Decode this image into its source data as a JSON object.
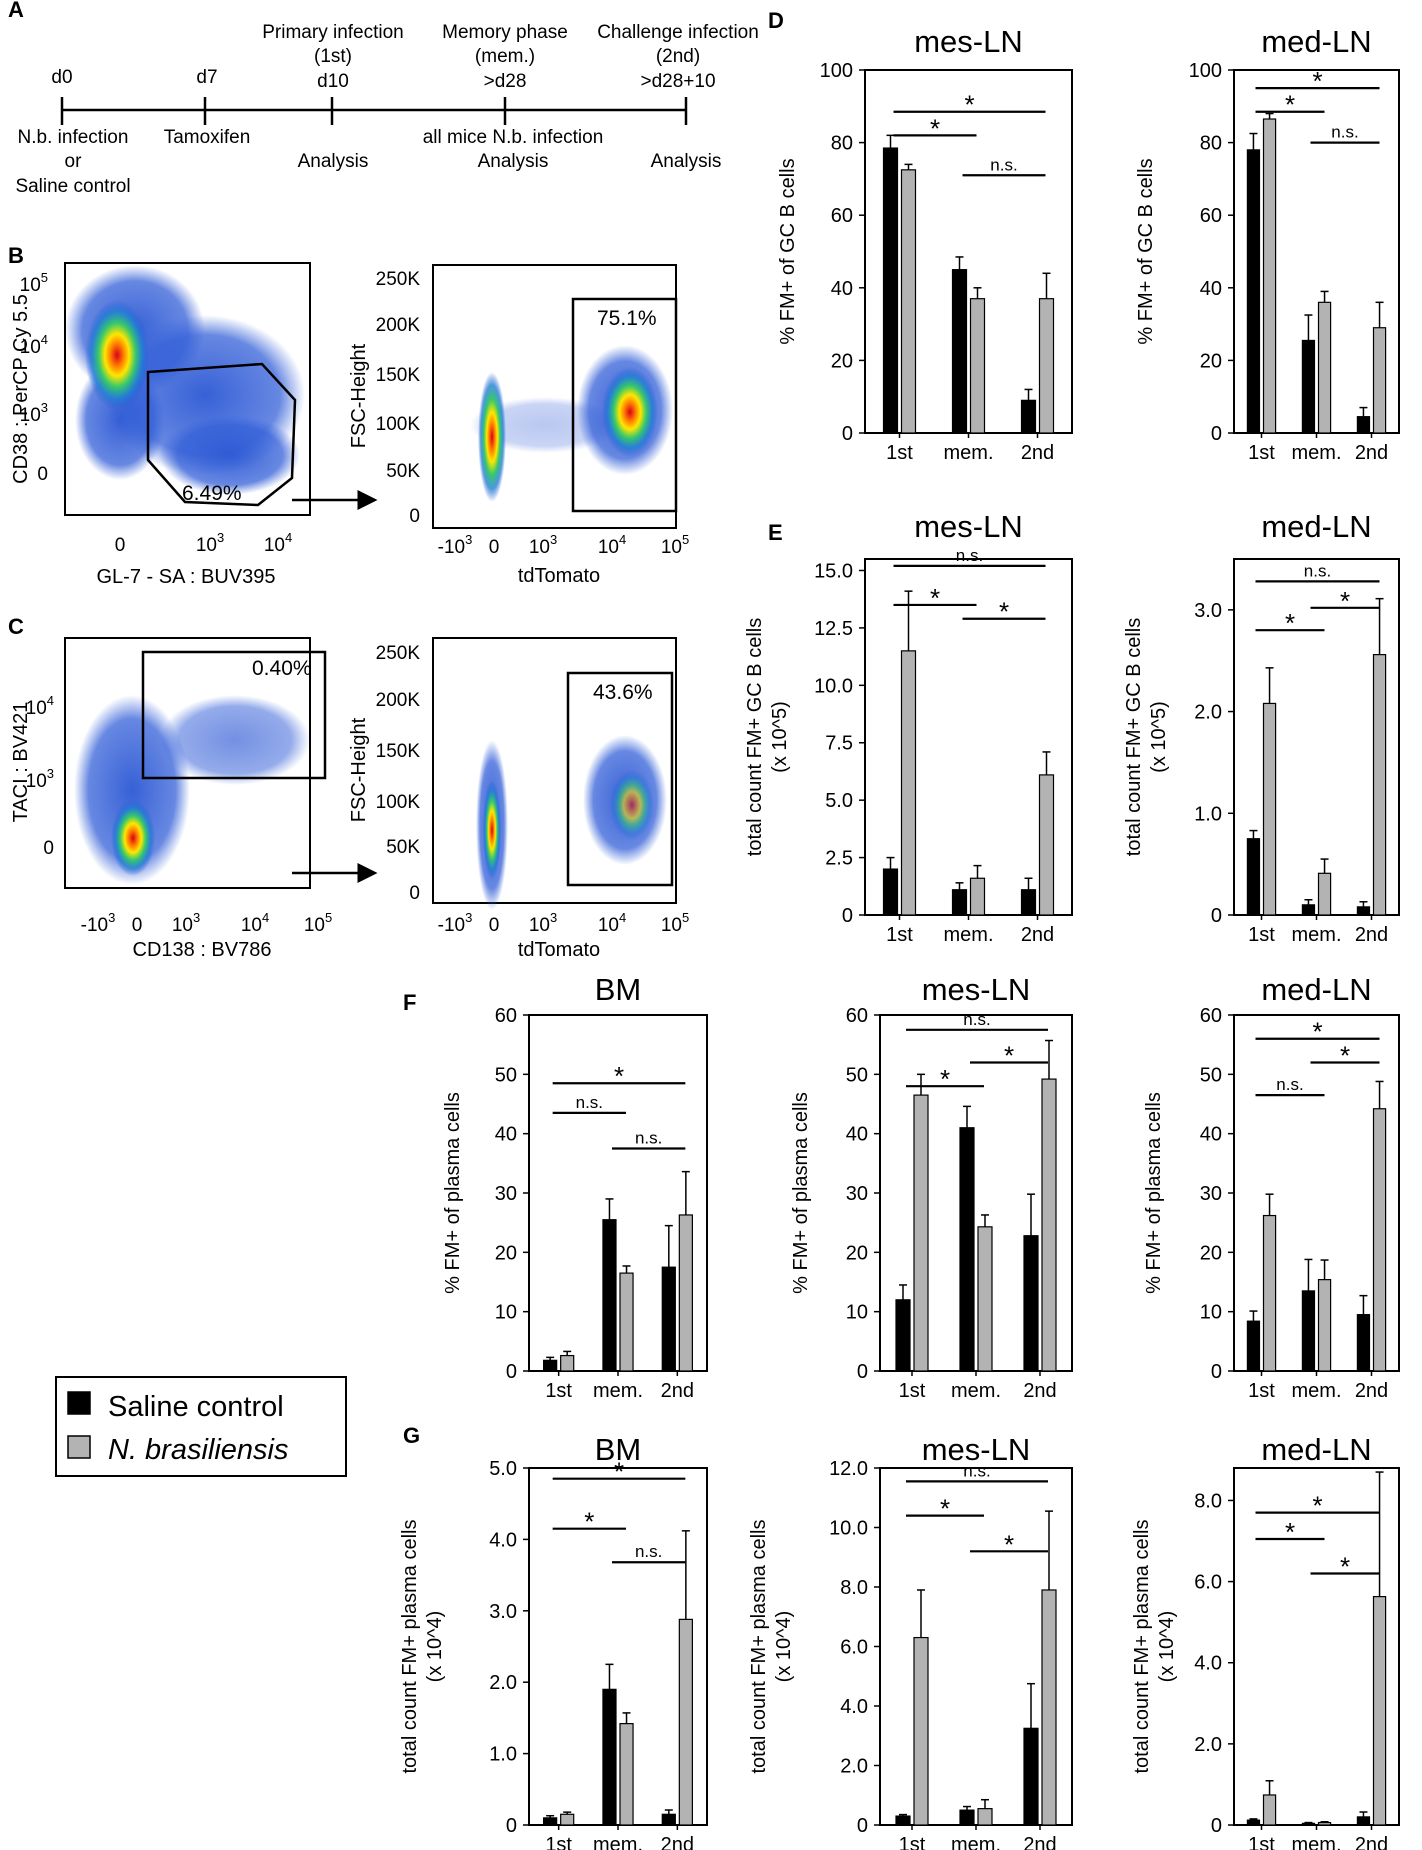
{
  "panel_letters": [
    "A",
    "B",
    "C",
    "D",
    "E",
    "F",
    "G"
  ],
  "timeline": {
    "points": [
      {
        "day": "d0",
        "above": [],
        "below": [
          "N.b. infection",
          "or",
          "Saline control"
        ]
      },
      {
        "day": "d7",
        "above": [],
        "below": [
          "Tamoxifen"
        ]
      },
      {
        "day": "d10",
        "above": [
          "Primary infection",
          "(1st)"
        ],
        "below": [
          "Analysis"
        ]
      },
      {
        "day": ">d28",
        "above": [
          "Memory phase",
          "(mem.)"
        ],
        "below": [
          "all mice N.b. infection",
          "Analysis"
        ]
      },
      {
        "day": ">d28+10",
        "above": [
          "Challenge infection",
          "(2nd)"
        ],
        "below": [
          "Analysis"
        ]
      }
    ]
  },
  "flow": {
    "B_left": {
      "xlabel": "GL-7 - SA : BUV395",
      "ylabel": "CD38 : PerCP Cy 5.5",
      "gate": "6.49%",
      "xticks": [
        "0",
        "10^3",
        "10^4"
      ],
      "yticks": [
        "10^5",
        "10^4",
        "10^3",
        "0"
      ]
    },
    "B_right": {
      "xlabel": "tdTomato",
      "ylabel": "FSC-Height",
      "gate": "75.1%",
      "xticks": [
        "-10^3",
        "0",
        "10^3",
        "10^4",
        "10^5"
      ],
      "yticks": [
        "250K",
        "200K",
        "150K",
        "100K",
        "50K",
        "0"
      ]
    },
    "C_left": {
      "xlabel": "CD138 : BV786",
      "ylabel": "TACI : BV421",
      "gate": "0.40%",
      "xticks": [
        "-10^3",
        "0",
        "10^3",
        "10^4",
        "10^5"
      ],
      "yticks": [
        "10^4",
        "10^3",
        "0"
      ]
    },
    "C_right": {
      "xlabel": "tdTomato",
      "ylabel": "FSC-Height",
      "gate": "43.6%",
      "xticks": [
        "-10^3",
        "0",
        "10^3",
        "10^4",
        "10^5"
      ],
      "yticks": [
        "250K",
        "200K",
        "150K",
        "100K",
        "50K",
        "0"
      ]
    }
  },
  "legend": {
    "items": [
      {
        "label": "Saline control",
        "color": "#000000"
      },
      {
        "label": "N. brasiliensis",
        "color": "#b3b3b3"
      }
    ]
  },
  "colors": {
    "saline": "#000000",
    "nb": "#b3b3b3"
  },
  "chart_data": [
    {
      "type": "bar",
      "panel": "D",
      "title": "mes-LN",
      "ylabel": "% FM+  of GC B cells",
      "categories": [
        "1st",
        "mem.",
        "2nd"
      ],
      "ylim": [
        0,
        100
      ],
      "yticks": [
        0,
        20,
        40,
        60,
        80,
        100
      ],
      "ticklabels": [
        "0",
        "20",
        "40",
        "60",
        "80",
        "100"
      ],
      "series": [
        {
          "name": "Saline control",
          "values": [
            78.5,
            45,
            9
          ],
          "errors": [
            3.5,
            3.5,
            3
          ]
        },
        {
          "name": "N. brasiliensis",
          "values": [
            72.5,
            37,
            37
          ],
          "errors": [
            1.5,
            3,
            7
          ]
        }
      ],
      "sig": [
        {
          "from": 0,
          "to": 2,
          "label": "*",
          "y": 88.5
        },
        {
          "from": 0,
          "to": 1,
          "label": "*",
          "y": 82
        },
        {
          "from": 1,
          "to": 2,
          "label": "n.s.",
          "y": 71
        }
      ]
    },
    {
      "type": "bar",
      "panel": "D",
      "title": "med-LN",
      "ylabel": "% FM+  of GC B cells",
      "categories": [
        "1st",
        "mem.",
        "2nd"
      ],
      "ylim": [
        0,
        100
      ],
      "yticks": [
        0,
        20,
        40,
        60,
        80,
        100
      ],
      "ticklabels": [
        "0",
        "20",
        "40",
        "60",
        "80",
        "100"
      ],
      "series": [
        {
          "name": "Saline control",
          "values": [
            78,
            25.5,
            4.5
          ],
          "errors": [
            4.5,
            7,
            2.5
          ]
        },
        {
          "name": "N. brasiliensis",
          "values": [
            86.5,
            36,
            29
          ],
          "errors": [
            1.5,
            3,
            7
          ]
        }
      ],
      "sig": [
        {
          "from": 0,
          "to": 2,
          "label": "*",
          "y": 95
        },
        {
          "from": 0,
          "to": 1,
          "label": "*",
          "y": 88.5
        },
        {
          "from": 1,
          "to": 2,
          "label": "n.s.",
          "y": 80
        }
      ]
    },
    {
      "type": "bar",
      "panel": "E",
      "title": "mes-LN",
      "ylabel": "total count FM+ GC B cells\n(x 10^5)",
      "categories": [
        "1st",
        "mem.",
        "2nd"
      ],
      "ylim": [
        0,
        15.5
      ],
      "yticks": [
        0,
        2.5,
        5,
        7.5,
        10,
        12.5,
        15
      ],
      "ticklabels": [
        "0",
        "2.5",
        "5.0",
        "7.5",
        "10.0",
        "12.5",
        "15.0"
      ],
      "series": [
        {
          "name": "Saline control",
          "values": [
            2,
            1.1,
            1.1
          ],
          "errors": [
            0.5,
            0.3,
            0.5
          ]
        },
        {
          "name": "N. brasiliensis",
          "values": [
            11.5,
            1.6,
            6.1
          ],
          "errors": [
            2.6,
            0.55,
            1
          ]
        }
      ],
      "sig": [
        {
          "from": 0,
          "to": 2,
          "label": "n.s.",
          "y": 15.2
        },
        {
          "from": 0,
          "to": 1,
          "label": "*",
          "y": 13.5
        },
        {
          "from": 1,
          "to": 2,
          "label": "*",
          "y": 12.9
        }
      ]
    },
    {
      "type": "bar",
      "panel": "E",
      "title": "med-LN",
      "ylabel": "total count FM+ GC B cells\n(x 10^5)",
      "categories": [
        "1st",
        "mem.",
        "2nd"
      ],
      "ylim": [
        0,
        3.5
      ],
      "yticks": [
        0,
        1,
        2,
        3
      ],
      "ticklabels": [
        "0",
        "1.0",
        "2.0",
        "3.0"
      ],
      "series": [
        {
          "name": "Saline control",
          "values": [
            0.75,
            0.1,
            0.08
          ],
          "errors": [
            0.08,
            0.05,
            0.05
          ]
        },
        {
          "name": "N. brasiliensis",
          "values": [
            2.08,
            0.41,
            2.56
          ],
          "errors": [
            0.35,
            0.14,
            0.55
          ]
        }
      ],
      "sig": [
        {
          "from": 0,
          "to": 2,
          "label": "n.s.",
          "y": 3.28
        },
        {
          "from": 0,
          "to": 1,
          "label": "*",
          "y": 2.8
        },
        {
          "from": 1,
          "to": 2,
          "label": "*",
          "y": 3.02
        }
      ]
    },
    {
      "type": "bar",
      "panel": "F",
      "title": "BM",
      "ylabel": "% FM+ of plasma cells",
      "categories": [
        "1st",
        "mem.",
        "2nd"
      ],
      "ylim": [
        0,
        60
      ],
      "yticks": [
        0,
        10,
        20,
        30,
        40,
        50,
        60
      ],
      "ticklabels": [
        "0",
        "10",
        "20",
        "30",
        "40",
        "50",
        "60"
      ],
      "series": [
        {
          "name": "Saline control",
          "values": [
            1.8,
            25.5,
            17.5
          ],
          "errors": [
            0.5,
            3.5,
            7
          ]
        },
        {
          "name": "N. brasiliensis",
          "values": [
            2.6,
            16.5,
            26.3
          ],
          "errors": [
            0.7,
            1.2,
            7.3
          ]
        }
      ],
      "sig": [
        {
          "from": 0,
          "to": 2,
          "label": "*",
          "y": 48.5
        },
        {
          "from": 0,
          "to": 1,
          "label": "n.s.",
          "y": 43.5
        },
        {
          "from": 1,
          "to": 2,
          "label": "n.s.",
          "y": 37.5
        }
      ]
    },
    {
      "type": "bar",
      "panel": "F",
      "title": "mes-LN",
      "ylabel": "% FM+ of plasma cells",
      "categories": [
        "1st",
        "mem.",
        "2nd"
      ],
      "ylim": [
        0,
        60
      ],
      "yticks": [
        0,
        10,
        20,
        30,
        40,
        50,
        60
      ],
      "ticklabels": [
        "0",
        "10",
        "20",
        "30",
        "40",
        "50",
        "60"
      ],
      "series": [
        {
          "name": "Saline control",
          "values": [
            12,
            41,
            22.8
          ],
          "errors": [
            2.5,
            3.6,
            7
          ]
        },
        {
          "name": "N. brasiliensis",
          "values": [
            46.5,
            24.3,
            49.2
          ],
          "errors": [
            3.5,
            2,
            6.5
          ]
        }
      ],
      "sig": [
        {
          "from": 0,
          "to": 2,
          "label": "n.s.",
          "y": 57.5
        },
        {
          "from": 0,
          "to": 1,
          "label": "*",
          "y": 48
        },
        {
          "from": 1,
          "to": 2,
          "label": "*",
          "y": 52
        }
      ]
    },
    {
      "type": "bar",
      "panel": "F",
      "title": "med-LN",
      "ylabel": "% FM+ of plasma cells",
      "categories": [
        "1st",
        "mem.",
        "2nd"
      ],
      "ylim": [
        0,
        60
      ],
      "yticks": [
        0,
        10,
        20,
        30,
        40,
        50,
        60
      ],
      "ticklabels": [
        "0",
        "10",
        "20",
        "30",
        "40",
        "50",
        "60"
      ],
      "series": [
        {
          "name": "Saline control",
          "values": [
            8.4,
            13.5,
            9.5
          ],
          "errors": [
            1.7,
            5.3,
            3.2
          ]
        },
        {
          "name": "N. brasiliensis",
          "values": [
            26.2,
            15.4,
            44.2
          ],
          "errors": [
            3.6,
            3.3,
            4.6
          ]
        }
      ],
      "sig": [
        {
          "from": 0,
          "to": 2,
          "label": "*",
          "y": 56
        },
        {
          "from": 0,
          "to": 1,
          "label": "n.s.",
          "y": 46.5
        },
        {
          "from": 1,
          "to": 2,
          "label": "*",
          "y": 52
        }
      ]
    },
    {
      "type": "bar",
      "panel": "G",
      "title": "BM",
      "ylabel": "total count FM+ plasma cells\n(x 10^4)",
      "categories": [
        "1st",
        "mem.",
        "2nd"
      ],
      "ylim": [
        0,
        5
      ],
      "yticks": [
        0,
        1,
        2,
        3,
        4,
        5
      ],
      "ticklabels": [
        "0",
        "1.0",
        "2.0",
        "3.0",
        "4.0",
        "5.0"
      ],
      "series": [
        {
          "name": "Saline control",
          "values": [
            0.1,
            1.9,
            0.15
          ],
          "errors": [
            0.03,
            0.35,
            0.06
          ]
        },
        {
          "name": "N. brasiliensis",
          "values": [
            0.15,
            1.42,
            2.88
          ],
          "errors": [
            0.03,
            0.15,
            1.24
          ]
        }
      ],
      "sig": [
        {
          "from": 0,
          "to": 2,
          "label": "*",
          "y": 4.85
        },
        {
          "from": 0,
          "to": 1,
          "label": "*",
          "y": 4.15
        },
        {
          "from": 1,
          "to": 2,
          "label": "n.s.",
          "y": 3.68
        }
      ]
    },
    {
      "type": "bar",
      "panel": "G",
      "title": "mes-LN",
      "ylabel": "total count FM+ plasma cells\n(x 10^4)",
      "categories": [
        "1st",
        "mem.",
        "2nd"
      ],
      "ylim": [
        0,
        12
      ],
      "yticks": [
        0,
        2,
        4,
        6,
        8,
        10,
        12
      ],
      "ticklabels": [
        "0",
        "2.0",
        "4.0",
        "6.0",
        "8.0",
        "10.0",
        "12.0"
      ],
      "series": [
        {
          "name": "Saline control",
          "values": [
            0.3,
            0.5,
            3.25
          ],
          "errors": [
            0.05,
            0.12,
            1.5
          ]
        },
        {
          "name": "N. brasiliensis",
          "values": [
            6.3,
            0.55,
            7.9
          ],
          "errors": [
            1.6,
            0.3,
            2.65
          ]
        }
      ],
      "sig": [
        {
          "from": 0,
          "to": 2,
          "label": "n.s.",
          "y": 11.55
        },
        {
          "from": 0,
          "to": 1,
          "label": "*",
          "y": 10.4
        },
        {
          "from": 1,
          "to": 2,
          "label": "*",
          "y": 9.2
        }
      ]
    },
    {
      "type": "bar",
      "panel": "G",
      "title": "med-LN",
      "ylabel": "total count FM+ plasma cells\n(x 10^4)",
      "categories": [
        "1st",
        "mem.",
        "2nd"
      ],
      "ylim": [
        0,
        8.8
      ],
      "yticks": [
        0,
        2,
        4,
        6,
        8
      ],
      "ticklabels": [
        "0",
        "2.0",
        "4.0",
        "6.0",
        "8.0"
      ],
      "series": [
        {
          "name": "Saline control",
          "values": [
            0.12,
            0.04,
            0.2
          ],
          "errors": [
            0.03,
            0.02,
            0.12
          ]
        },
        {
          "name": "N. brasiliensis",
          "values": [
            0.74,
            0.06,
            5.63
          ],
          "errors": [
            0.35,
            0.02,
            3.07
          ]
        }
      ],
      "sig": [
        {
          "from": 0,
          "to": 2,
          "label": "*",
          "y": 7.7
        },
        {
          "from": 0,
          "to": 1,
          "label": "*",
          "y": 7.05
        },
        {
          "from": 1,
          "to": 2,
          "label": "*",
          "y": 6.2
        }
      ]
    }
  ]
}
